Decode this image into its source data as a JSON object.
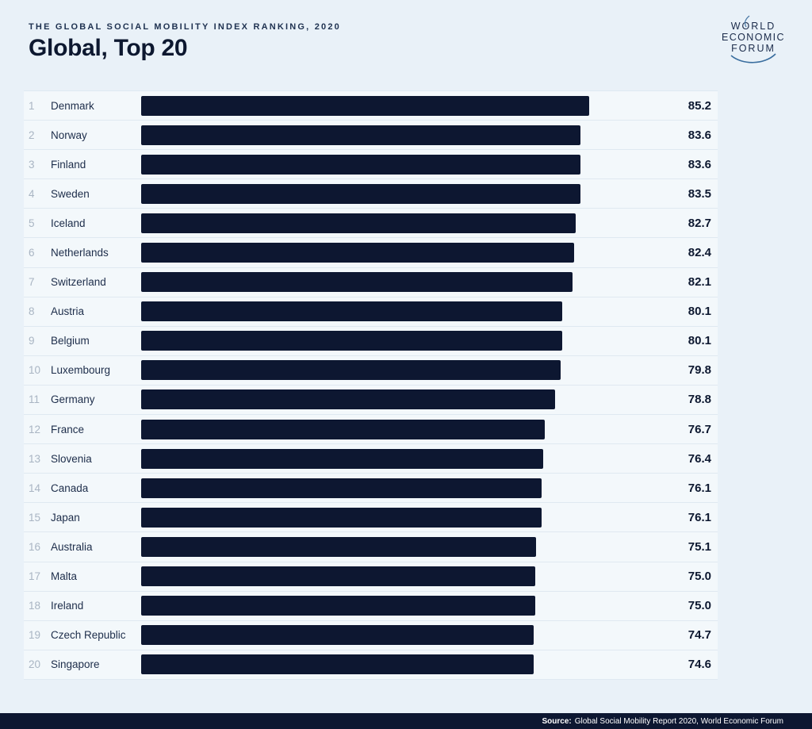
{
  "header": {
    "kicker": "THE GLOBAL SOCIAL MOBILITY INDEX RANKING, 2020",
    "title": "Global, Top 20"
  },
  "logo": {
    "lines": [
      "WORLD",
      "ECONOMIC",
      "FORUM"
    ]
  },
  "chart_data": {
    "type": "bar",
    "orientation": "horizontal",
    "title": "Global, Top 20",
    "subtitle": "The Global Social Mobility Index Ranking, 2020",
    "ranks": [
      1,
      2,
      3,
      4,
      5,
      6,
      7,
      8,
      9,
      10,
      11,
      12,
      13,
      14,
      15,
      16,
      17,
      18,
      19,
      20
    ],
    "categories": [
      "Denmark",
      "Norway",
      "Finland",
      "Sweden",
      "Iceland",
      "Netherlands",
      "Switzerland",
      "Austria",
      "Belgium",
      "Luxembourg",
      "Germany",
      "France",
      "Slovenia",
      "Canada",
      "Japan",
      "Australia",
      "Malta",
      "Ireland",
      "Czech Republic",
      "Singapore"
    ],
    "values": [
      85.2,
      83.6,
      83.6,
      83.5,
      82.7,
      82.4,
      82.1,
      80.1,
      80.1,
      79.8,
      78.8,
      76.7,
      76.4,
      76.1,
      76.1,
      75.1,
      75.0,
      75.0,
      74.7,
      74.6
    ],
    "xlim": [
      0,
      100
    ],
    "grid": false,
    "legend": false,
    "value_labels": "right",
    "bar_color": "#0d1731"
  },
  "colors": {
    "page_background": "#e9f1f8",
    "row_background": "#f3f8fb",
    "divider": "#dfe9f1",
    "navy": "#0d1731",
    "rank_text": "#a9b5c3",
    "country_text": "#1d2d4a",
    "logo_arc_blue": "#3a6e9f"
  },
  "footer": {
    "source_label": "Source:",
    "source_text": "Global Social Mobility Report 2020, World Economic Forum"
  }
}
